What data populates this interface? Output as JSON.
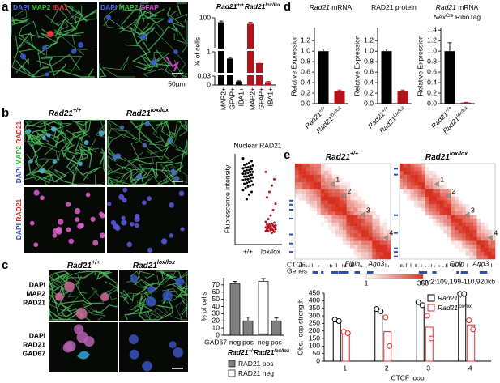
{
  "panel_labels": [
    "a",
    "b",
    "c",
    "d",
    "e"
  ],
  "genotypes": [
    {
      "gene": "Rad21",
      "allele": "+/+"
    },
    {
      "gene": "Rad21",
      "allele": "lox/lox"
    }
  ],
  "panel_a": {
    "image_labels": [
      [
        {
          "text": "DAPI",
          "color": "#4a6cf7"
        },
        {
          "text": "MAP2",
          "color": "#3cc43c"
        },
        {
          "text": "IBA1",
          "color": "#e23a3a"
        }
      ],
      [
        {
          "text": "DAPI",
          "color": "#4a6cf7"
        },
        {
          "text": "MAP2",
          "color": "#3cc43c"
        },
        {
          "text": "GFAP",
          "color": "#e040e0"
        }
      ]
    ],
    "scale_bar": "50µm"
  },
  "panel_b": {
    "row_labels": [
      [
        {
          "text": "DAPI",
          "color": "#2b3fa8"
        },
        {
          "text": "MAP2",
          "color": "#2fa82f"
        },
        {
          "text": "RAD21",
          "color": "#d42a2a"
        }
      ],
      [
        {
          "text": "DAPI",
          "color": "#2b3fa8"
        },
        {
          "text": "RAD21",
          "color": "#d42a2a"
        }
      ]
    ]
  },
  "panel_c": {
    "row_labels": [
      [
        {
          "text": "DAPI",
          "color": "#1f2f8f"
        },
        {
          "text": "MAP2",
          "color": "#2fa82f"
        },
        {
          "text": "RAD21",
          "color": "#d42a2a"
        }
      ],
      [
        {
          "text": "DAPI",
          "color": "#1f2f8f"
        },
        {
          "text": "RAD21",
          "color": "#d42a2a"
        },
        {
          "text": "GAD67",
          "color": "#28a8d8"
        }
      ]
    ]
  },
  "panel_e": {
    "loop_labels": [
      "1",
      "2",
      "3",
      "4"
    ],
    "tracks": [
      "CTCF",
      "Genes"
    ],
    "genes": [
      "Fibin",
      "Ano3"
    ],
    "colorbar": [
      1,
      368
    ],
    "colorbar_color": "#d7301f",
    "region": "chr2:109,199-110,920kb"
  },
  "chart_data": [
    {
      "type": "broken_bar",
      "y_label": "% of cells",
      "categories": [
        "MAP2+",
        "GFAP+",
        "IBA1+"
      ],
      "ylim_segments": [
        [
          0,
          0.03
        ],
        [
          0.1,
          1
        ],
        [
          90,
          100
        ]
      ],
      "yticks": [
        0,
        0.03,
        1,
        100
      ],
      "series": [
        {
          "gene": "Rad21",
          "allele": "+/+",
          "color": "#000000",
          "values": [
            98.5,
            0.7,
            0.012
          ],
          "errors": [
            0.4,
            0.05,
            0.002
          ]
        },
        {
          "gene": "Rad21",
          "allele": "lox/lox",
          "color": "#b5121b",
          "values": [
            98.0,
            0.5,
            0.01
          ],
          "errors": [
            0.5,
            0.05,
            0.002
          ]
        }
      ]
    },
    {
      "type": "strip",
      "title": "Nuclear RAD21",
      "y_label": "Fluorescence intensity",
      "categories": [
        "+/+",
        "lox/lox"
      ],
      "ylim": [
        0,
        100
      ],
      "series": [
        {
          "color": "#000000",
          "values": [
            95,
            92,
            90,
            89,
            88,
            87,
            86,
            85,
            85,
            84,
            83,
            82,
            82,
            81,
            80,
            80,
            79,
            78,
            78,
            77,
            76,
            75,
            75,
            74,
            73,
            72,
            72,
            71,
            70,
            69,
            68,
            67,
            66,
            65,
            64,
            62,
            60,
            58,
            55,
            50
          ]
        },
        {
          "color": "#b5121b",
          "values": [
            80,
            72,
            65,
            58,
            52,
            45,
            38,
            32,
            28,
            25,
            24,
            23,
            22,
            22,
            21,
            21,
            20,
            20,
            19,
            19,
            18,
            18,
            17,
            17,
            16,
            16,
            15,
            15,
            14,
            13
          ]
        }
      ]
    },
    {
      "type": "stacked_bar",
      "y_label": "% of cells",
      "x_label": "GAD67",
      "categories": [
        "neg",
        "pos",
        "neg",
        "pos"
      ],
      "ylim": [
        0,
        80
      ],
      "yticks": [
        0,
        10,
        20,
        30,
        40,
        50,
        60,
        70
      ],
      "series": [
        {
          "name": "RAD21 pos",
          "color": "#808080",
          "values": [
            72,
            20,
            2,
            20
          ],
          "errors": [
            3,
            5,
            1,
            4
          ]
        },
        {
          "name": "RAD21 neg",
          "color": "#ffffff",
          "values": [
            null,
            null,
            73,
            null
          ],
          "errors": [
            null,
            null,
            4,
            null
          ]
        }
      ]
    },
    {
      "type": "bar",
      "title_lines": [
        [
          {
            "text": "Rad21",
            "italic": true
          },
          {
            "text": " mRNA"
          }
        ]
      ],
      "y_label": "Relative Expression",
      "categories": [
        {
          "gene": "Rad21",
          "allele": "+/+"
        },
        {
          "gene": "Rad21",
          "allele": "lox/lox"
        }
      ],
      "colors": [
        "#000000",
        "#b5121b"
      ],
      "values": [
        1.0,
        0.24
      ],
      "errors": [
        0.04,
        0.02
      ],
      "ylim": [
        0,
        1.45
      ],
      "yticks": [
        {
          "value": 0,
          "label": "0.0"
        },
        0.2,
        0.4,
        0.6,
        0.8,
        {
          "value": 1,
          "label": "1.0"
        },
        1.2
      ]
    },
    {
      "type": "bar",
      "title_lines": [
        [
          {
            "text": "RAD21 protein"
          }
        ]
      ],
      "y_label": "Relative Expression",
      "categories": [
        {
          "gene": "Rad21",
          "allele": "+/+"
        },
        {
          "gene": "Rad21",
          "allele": "lox/lox"
        }
      ],
      "colors": [
        "#000000",
        "#b5121b"
      ],
      "values": [
        1.0,
        0.24
      ],
      "errors": [
        0.04,
        0.02
      ],
      "ylim": [
        0,
        1.45
      ],
      "yticks": [
        {
          "value": 0,
          "label": "0.0"
        },
        0.2,
        0.4,
        0.6,
        0.8,
        {
          "value": 1,
          "label": "1.0"
        },
        1.2
      ]
    },
    {
      "type": "bar",
      "title_lines": [
        [
          {
            "text": "Rad21",
            "italic": true
          },
          {
            "text": " mRNA"
          }
        ],
        [
          {
            "text": "Nex",
            "italic": true
          },
          {
            "text": "Cre",
            "sup": true
          },
          {
            "text": " RiboTag"
          }
        ]
      ],
      "y_label": "Relative Expression",
      "categories": [
        {
          "gene": "Rad21",
          "allele": "+/+"
        },
        {
          "gene": "Rad21",
          "allele": "lox/lox"
        }
      ],
      "colors": [
        "#000000",
        "#b5121b"
      ],
      "values": [
        1.0,
        0.02
      ],
      "errors": [
        0.16,
        0.005
      ],
      "ylim": [
        0,
        1.45
      ],
      "yticks": [
        {
          "value": 0,
          "label": "0.0"
        },
        0.2,
        0.4,
        0.6,
        0.8,
        {
          "value": 1,
          "label": "1.0"
        },
        1.2,
        1.4
      ]
    },
    {
      "type": "bar_points",
      "y_label": "Obs. loop strength",
      "x_label": "CTCF loop",
      "categories": [
        "1",
        "2",
        "3",
        "4"
      ],
      "ylim": [
        0,
        450
      ],
      "yticks": [
        0,
        50,
        100,
        150,
        200,
        250,
        300,
        350,
        400,
        450
      ],
      "legend": "top-right",
      "series": [
        {
          "gene": "Rad21",
          "allele": "+/+",
          "color": "#000000",
          "values": [
            270,
            337,
            380,
            445
          ],
          "points": [
            [
              275,
              265
            ],
            [
              345,
              330
            ],
            [
              390,
              370
            ],
            [
              445,
              445
            ]
          ]
        },
        {
          "gene": "Rad21",
          "allele": "lox/lox",
          "color": "#e03030",
          "values": [
            190,
            195,
            225,
            240
          ],
          "points": [
            [
              195,
              185
            ],
            [
              290,
              100
            ],
            [
              300,
              150
            ],
            [
              270,
              210
            ]
          ]
        }
      ]
    }
  ]
}
